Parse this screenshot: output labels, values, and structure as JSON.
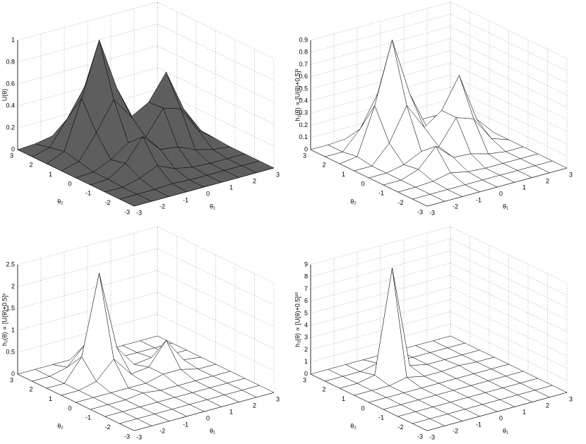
{
  "chart_data": [
    {
      "type": "surface",
      "zlabel": "U(θ)",
      "xlabel": "θ₁",
      "ylabel": "θ₂",
      "color": "#5e5e5e",
      "grid": true,
      "x": [
        -3,
        -2.25,
        -1.5,
        -0.75,
        0,
        0.75,
        1.5,
        2.25,
        3
      ],
      "y": [
        -3,
        -2.25,
        -1.5,
        -0.75,
        0,
        0.75,
        1.5,
        2.25,
        3
      ],
      "z": [
        [
          0,
          0,
          0,
          0,
          0,
          0,
          0,
          0,
          0
        ],
        [
          0,
          0,
          0,
          0.01,
          0,
          0,
          0,
          0,
          0
        ],
        [
          0,
          0,
          0.04,
          0.11,
          0.04,
          0.01,
          0,
          0,
          0
        ],
        [
          0,
          0.01,
          0.11,
          0.31,
          0.15,
          0.13,
          0.06,
          0.02,
          0
        ],
        [
          0,
          0.01,
          0.08,
          0.19,
          0.2,
          0.42,
          0.37,
          0.13,
          0.01
        ],
        [
          0,
          0.04,
          0.26,
          0.52,
          0.32,
          0.41,
          0.64,
          0.26,
          0.02
        ],
        [
          0,
          0.07,
          0.51,
          1,
          0.52,
          0.18,
          0.26,
          0.11,
          0.01
        ],
        [
          0,
          0.04,
          0.26,
          0.51,
          0.26,
          0.04,
          0.02,
          0.01,
          0
        ],
        [
          0,
          0.01,
          0.04,
          0.07,
          0.04,
          0.01,
          0,
          0,
          0
        ]
      ],
      "xlim": [
        -3,
        3
      ],
      "ylim": [
        -3,
        3
      ],
      "zlim": [
        0,
        1
      ],
      "xticks": [
        -3,
        -2,
        -1,
        0,
        1,
        2,
        3
      ],
      "yticks": [
        -3,
        -2,
        -1,
        0,
        1,
        2,
        3
      ],
      "zticks": [
        0,
        0.2,
        0.4,
        0.6,
        0.8,
        1
      ]
    },
    {
      "type": "surface",
      "zlabel": "h₁(θ) ∝ [U(θ)+0.5]³",
      "xlabel": "θ₁",
      "ylabel": "θ₂",
      "color": "#ffffff",
      "grid": true,
      "x": [
        -3,
        -2.25,
        -1.5,
        -0.75,
        0,
        0.75,
        1.5,
        2.25,
        3
      ],
      "y": [
        -3,
        -2.25,
        -1.5,
        -0.75,
        0,
        0.75,
        1.5,
        2.25,
        3
      ],
      "z": [
        [
          0,
          0,
          0,
          0,
          0,
          0,
          0,
          0,
          0
        ],
        [
          0,
          0,
          0,
          0,
          0,
          0,
          0,
          0,
          0
        ],
        [
          0,
          0,
          0.01,
          0.04,
          0.01,
          0,
          0,
          0,
          0
        ],
        [
          0,
          0,
          0.05,
          0.2,
          0.07,
          0.06,
          0.02,
          0,
          0
        ],
        [
          0,
          0,
          0.03,
          0.1,
          0.1,
          0.3,
          0.25,
          0.05,
          0
        ],
        [
          0,
          0,
          0.15,
          0.42,
          0.2,
          0.3,
          0.55,
          0.15,
          0
        ],
        [
          0,
          0.02,
          0.4,
          0.9,
          0.42,
          0.1,
          0.2,
          0.05,
          0
        ],
        [
          0,
          0,
          0.15,
          0.4,
          0.15,
          0,
          0,
          0,
          0
        ],
        [
          0,
          0,
          0.01,
          0.02,
          0.01,
          0,
          0,
          0,
          0
        ]
      ],
      "xlim": [
        -3,
        3
      ],
      "ylim": [
        -3,
        3
      ],
      "zlim": [
        0,
        0.9
      ],
      "xticks": [
        -3,
        -2,
        -1,
        0,
        1,
        2,
        3
      ],
      "yticks": [
        -3,
        -2,
        -1,
        0,
        1,
        2,
        3
      ],
      "zticks": [
        0,
        0.1,
        0.2,
        0.3,
        0.4,
        0.5,
        0.6,
        0.7,
        0.8,
        0.9
      ]
    },
    {
      "type": "surface",
      "zlabel": "h₂(θ) ∝ [U(θ)+0.5]⁶",
      "xlabel": "θ₁",
      "ylabel": "θ₂",
      "color": "#ffffff",
      "grid": true,
      "x": [
        -3,
        -2.25,
        -1.5,
        -0.75,
        0,
        0.75,
        1.5,
        2.25,
        3
      ],
      "y": [
        -3,
        -2.25,
        -1.5,
        -0.75,
        0,
        0.75,
        1.5,
        2.25,
        3
      ],
      "z": [
        [
          0,
          0,
          0,
          0,
          0,
          0,
          0,
          0,
          0
        ],
        [
          0,
          0,
          0,
          0,
          0,
          0,
          0,
          0,
          0
        ],
        [
          0,
          0,
          0,
          0,
          0,
          0,
          0,
          0,
          0
        ],
        [
          0,
          0,
          0,
          0.05,
          0,
          0,
          0,
          0,
          0
        ],
        [
          0,
          0,
          0,
          0,
          0,
          0.1,
          0.1,
          0,
          0
        ],
        [
          0,
          0,
          0.1,
          0.5,
          0.05,
          0.1,
          0.6,
          0.05,
          0
        ],
        [
          0,
          0,
          0.5,
          2.3,
          0.5,
          0,
          0.05,
          0,
          0
        ],
        [
          0,
          0,
          0.1,
          0.5,
          0.1,
          0,
          0,
          0,
          0
        ],
        [
          0,
          0,
          0,
          0,
          0,
          0,
          0,
          0,
          0
        ]
      ],
      "xlim": [
        -3,
        3
      ],
      "ylim": [
        -3,
        3
      ],
      "zlim": [
        0,
        2.5
      ],
      "xticks": [
        -3,
        -2,
        -1,
        0,
        1,
        2,
        3
      ],
      "yticks": [
        -3,
        -2,
        -1,
        0,
        1,
        2,
        3
      ],
      "zticks": [
        0,
        0.5,
        1,
        1.5,
        2,
        2.5
      ]
    },
    {
      "type": "surface",
      "zlabel": "h₃(θ) ∝ [U(θ)+0.5]²⁰",
      "xlabel": "θ₁",
      "ylabel": "θ₂",
      "color": "#ffffff",
      "grid": true,
      "x": [
        -3,
        -2.25,
        -1.5,
        -0.75,
        0,
        0.75,
        1.5,
        2.25,
        3
      ],
      "y": [
        -3,
        -2.25,
        -1.5,
        -0.75,
        0,
        0.75,
        1.5,
        2.25,
        3
      ],
      "z": [
        [
          0,
          0,
          0,
          0,
          0,
          0,
          0,
          0,
          0
        ],
        [
          0,
          0,
          0,
          0,
          0,
          0,
          0,
          0,
          0
        ],
        [
          0,
          0,
          0,
          0,
          0,
          0,
          0,
          0,
          0
        ],
        [
          0,
          0,
          0,
          0,
          0,
          0,
          0,
          0,
          0
        ],
        [
          0,
          0,
          0,
          0,
          0,
          0,
          0,
          0,
          0
        ],
        [
          0,
          0,
          0,
          0.3,
          0,
          0,
          0.1,
          0,
          0
        ],
        [
          0,
          0,
          0.3,
          8.7,
          0.3,
          0,
          0,
          0,
          0
        ],
        [
          0,
          0,
          0,
          0.3,
          0,
          0,
          0,
          0,
          0
        ],
        [
          0,
          0,
          0,
          0,
          0,
          0,
          0,
          0,
          0
        ]
      ],
      "xlim": [
        -3,
        3
      ],
      "ylim": [
        -3,
        3
      ],
      "zlim": [
        0,
        9
      ],
      "xticks": [
        -3,
        -2,
        -1,
        0,
        1,
        2,
        3
      ],
      "yticks": [
        -3,
        -2,
        -1,
        0,
        1,
        2,
        3
      ],
      "zticks": [
        0,
        1,
        2,
        3,
        4,
        5,
        6,
        7,
        8,
        9
      ]
    }
  ]
}
